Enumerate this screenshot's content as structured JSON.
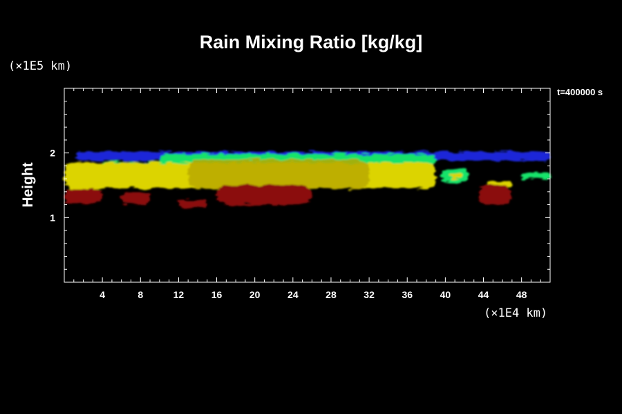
{
  "chart_data": {
    "type": "heatmap",
    "title": "Rain Mixing Ratio [kg/kg]",
    "ylabel": "Height",
    "xlabel": "",
    "y_multiplier_label": "(×1E5 km)",
    "x_multiplier_label": "(×1E4 km)",
    "time_label": "t=400000 s",
    "xlim": [
      0,
      51
    ],
    "ylim": [
      0,
      3
    ],
    "x_ticks": [
      4,
      8,
      12,
      16,
      20,
      24,
      28,
      32,
      36,
      40,
      44,
      48
    ],
    "y_ticks": [
      1,
      2
    ],
    "grid": false,
    "colors": {
      "background": "#000000",
      "axis": "#ffffff",
      "low": "#8b0d0d",
      "mid_low": "#b8a800",
      "mid": "#dcd400",
      "mid_high": "#19e36a",
      "high": "#1a28d8"
    },
    "regions": [
      {
        "level": "high",
        "x": [
          1.2,
          51
        ],
        "y": [
          1.88,
          2.02
        ]
      },
      {
        "level": "mid_high",
        "x": [
          10,
          39
        ],
        "y": [
          1.8,
          1.98
        ]
      },
      {
        "level": "mid_high",
        "x": [
          4,
          11
        ],
        "y": [
          1.78,
          1.86
        ]
      },
      {
        "level": "mid",
        "x": [
          0,
          39
        ],
        "y": [
          1.45,
          1.85
        ]
      },
      {
        "level": "mid_low",
        "x": [
          13,
          32
        ],
        "y": [
          1.45,
          1.9
        ]
      },
      {
        "level": "mid_high",
        "x": [
          39.5,
          42.5
        ],
        "y": [
          1.55,
          1.75
        ]
      },
      {
        "level": "mid",
        "x": [
          40.5,
          41.8
        ],
        "y": [
          1.6,
          1.7
        ]
      },
      {
        "level": "mid",
        "x": [
          44.5,
          47
        ],
        "y": [
          1.47,
          1.57
        ]
      },
      {
        "level": "mid_high",
        "x": [
          48,
          51
        ],
        "y": [
          1.6,
          1.7
        ]
      },
      {
        "level": "low",
        "x": [
          0,
          4
        ],
        "y": [
          1.22,
          1.45
        ]
      },
      {
        "level": "low",
        "x": [
          6,
          9
        ],
        "y": [
          1.2,
          1.4
        ]
      },
      {
        "level": "low",
        "x": [
          12,
          15
        ],
        "y": [
          1.15,
          1.27
        ]
      },
      {
        "level": "low",
        "x": [
          16,
          26
        ],
        "y": [
          1.2,
          1.5
        ]
      },
      {
        "level": "low",
        "x": [
          43.5,
          47
        ],
        "y": [
          1.2,
          1.5
        ]
      }
    ]
  }
}
